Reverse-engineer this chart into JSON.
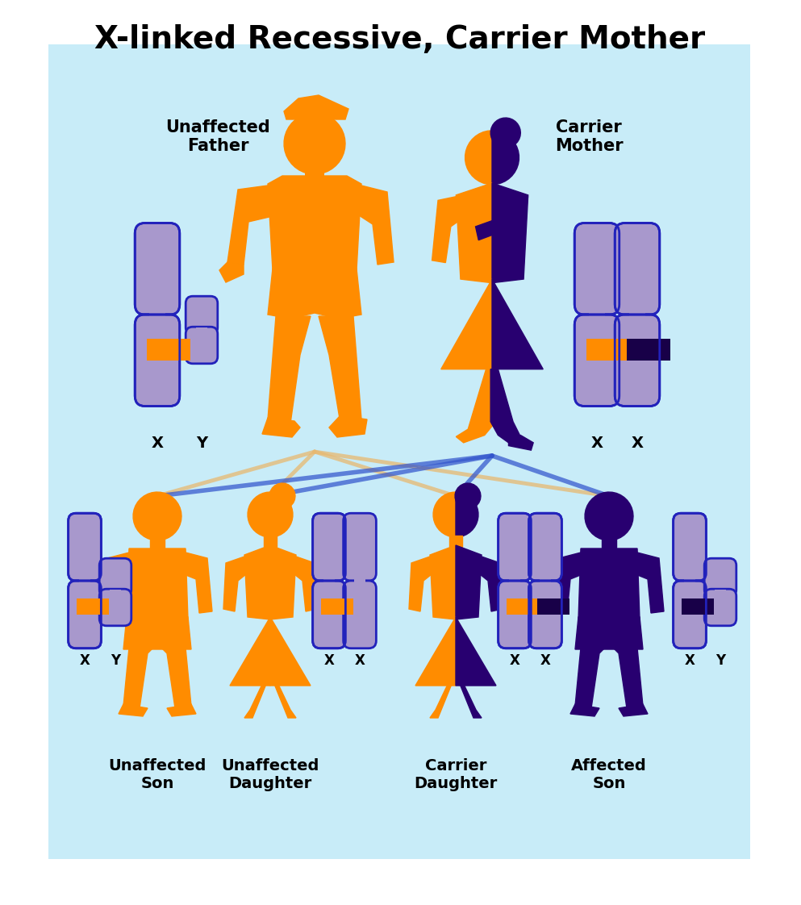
{
  "title": "X-linked Recessive, Carrier Mother",
  "bg_color": "#c8ecf8",
  "orange_color": "#FF8C00",
  "purple_color": "#280070",
  "chrom_body_color": "#a898cc",
  "chrom_outline_color": "#2222bb",
  "chrom_orange_band": "#FF8C00",
  "chrom_dark_band": "#180048",
  "line_orange": "#e8b870",
  "line_blue": "#3355cc",
  "parent_labels": [
    "Unaffected\nFather",
    "Carrier\nMother"
  ],
  "child_labels": [
    "Unaffected\nSon",
    "Unaffected\nDaughter",
    "Carrier\nDaughter",
    "Affected\nSon"
  ],
  "father_xy": [
    "X",
    "Y"
  ],
  "mother_xy": [
    "X",
    "X"
  ],
  "font_size_title": 28,
  "font_size_label": 15,
  "font_size_xy": 14
}
